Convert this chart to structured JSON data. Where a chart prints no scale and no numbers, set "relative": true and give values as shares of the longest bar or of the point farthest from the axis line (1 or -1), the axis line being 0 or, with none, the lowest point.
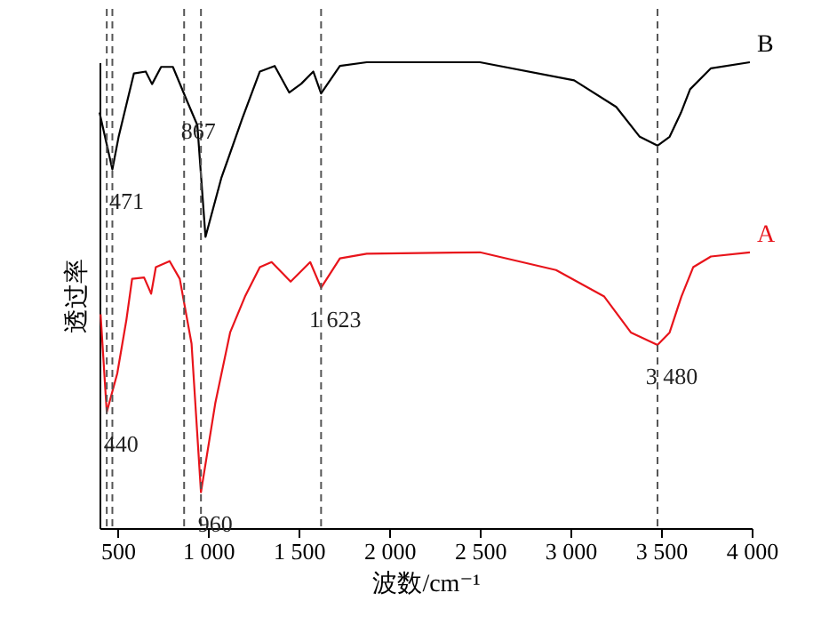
{
  "chart_data": {
    "type": "line",
    "relative": true,
    "xlabel": "波数/cm⁻¹",
    "ylabel": "透过率",
    "xlim": [
      400,
      4000
    ],
    "xticks": [
      500,
      {
        "value": 1000,
        "label": "1 000"
      },
      {
        "value": 1500,
        "label": "1 500"
      },
      {
        "value": 2000,
        "label": "2 000"
      },
      {
        "value": 2500,
        "label": "2 500"
      },
      {
        "value": 3000,
        "label": "3 000"
      },
      {
        "value": 3500,
        "label": "3 500"
      },
      {
        "value": 4000,
        "label": "4 000"
      }
    ],
    "grid": false,
    "marker": "none",
    "line_style": "solid",
    "ref_lines": [
      {
        "axis": "x",
        "value": 440,
        "color": "#555555",
        "line_style": "dashed"
      },
      {
        "axis": "x",
        "value": 471,
        "color": "#555555",
        "line_style": "dashed"
      },
      {
        "axis": "x",
        "value": 867,
        "color": "#555555",
        "line_style": "dashed"
      },
      {
        "axis": "x",
        "value": 960,
        "color": "#555555",
        "line_style": "dashed"
      },
      {
        "axis": "x",
        "value": 1623,
        "color": "#555555",
        "line_style": "dashed"
      },
      {
        "axis": "x",
        "value": 3480,
        "color": "#555555",
        "line_style": "dashed"
      }
    ],
    "annotations": [
      {
        "text": "471",
        "x": 471,
        "y": 0.77
      },
      {
        "text": "867",
        "x": 867,
        "y": 0.92
      },
      {
        "text": "440",
        "x": 440,
        "y": 0.249
      },
      {
        "text": "960",
        "x": 960,
        "y": 0.077
      },
      {
        "text": "1 623",
        "x": 1623,
        "y": 0.516
      },
      {
        "text": "3 480",
        "x": 3480,
        "y": 0.393
      }
    ],
    "series": [
      {
        "name": "A",
        "color": "#e8141b",
        "x": [
          406,
          440,
          498,
          548,
          580,
          646,
          685,
          711,
          787,
          843,
          908,
          960,
          1039,
          1121,
          1203,
          1285,
          1350,
          1455,
          1563,
          1623,
          1727,
          1875,
          2500,
          2920,
          3186,
          3333,
          3480,
          3547,
          3612,
          3677,
          3775,
          3990
        ],
        "values": [
          0.459,
          0.249,
          0.332,
          0.446,
          0.535,
          0.538,
          0.503,
          0.56,
          0.573,
          0.535,
          0.396,
          0.077,
          0.268,
          0.42,
          0.497,
          0.56,
          0.571,
          0.529,
          0.571,
          0.516,
          0.579,
          0.589,
          0.592,
          0.554,
          0.497,
          0.42,
          0.393,
          0.42,
          0.497,
          0.56,
          0.583,
          0.592
        ]
      },
      {
        "name": "B",
        "color": "#000000",
        "x": [
          400,
          471,
          505,
          590,
          655,
          690,
          740,
          805,
          885,
          940,
          985,
          1072,
          1187,
          1285,
          1367,
          1447,
          1514,
          1580,
          1623,
          1727,
          1875,
          2500,
          3020,
          3252,
          3382,
          3480,
          3547,
          3610,
          3660,
          3775,
          3990
        ],
        "values": [
          0.892,
          0.77,
          0.839,
          0.976,
          0.98,
          0.953,
          0.99,
          0.99,
          0.915,
          0.865,
          0.625,
          0.751,
          0.878,
          0.98,
          0.992,
          0.935,
          0.954,
          0.98,
          0.933,
          0.992,
          1.0,
          1.0,
          0.961,
          0.904,
          0.84,
          0.821,
          0.84,
          0.892,
          0.942,
          0.987,
          1.0
        ]
      }
    ]
  }
}
